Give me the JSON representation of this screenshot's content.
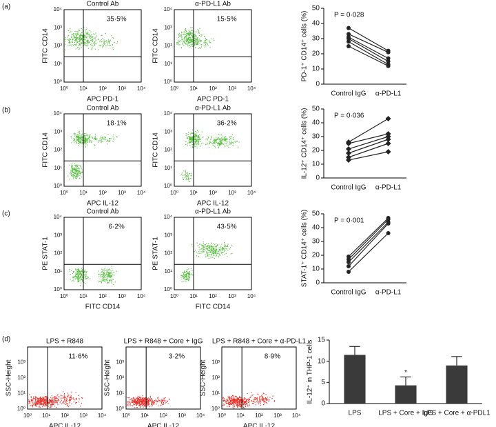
{
  "panel_labels": [
    "(a)",
    "(b)",
    "(c)",
    "(d)"
  ],
  "flow_axis_ticks": [
    "10⁰",
    "10¹",
    "10²",
    "10³",
    "10⁴"
  ],
  "flow_plots": [
    {
      "title": "Control Ab",
      "x_label": "APC PD-1",
      "y_label": "FITC CD14",
      "percent": "35·5%",
      "color": "#5cbf45"
    },
    {
      "title": "α-PD-L1 Ab",
      "x_label": "APC PD-1",
      "y_label": "FITC CD14",
      "percent": "15·5%",
      "color": "#5cbf45"
    },
    {
      "title": "Control Ab",
      "x_label": "APC IL-12",
      "y_label": "FITC CD14",
      "percent": "18·1%",
      "color": "#5cbf45"
    },
    {
      "title": "α-PD-L1 Ab",
      "x_label": "APC IL-12",
      "y_label": "FITC CD14",
      "percent": "36·2%",
      "color": "#5cbf45"
    },
    {
      "title": "Control Ab",
      "x_label": "FITC CD14",
      "y_label": "PE STAT-1",
      "percent": "6·2%",
      "color": "#5cbf45"
    },
    {
      "title": "α-PD-L1 Ab",
      "x_label": "FITC CD14",
      "y_label": "PE STAT-1",
      "percent": "43·5%",
      "color": "#5cbf45"
    },
    {
      "title": "LPS + R848",
      "x_label": "APC IL-12",
      "y_label": "SSC-Height",
      "percent": "11·6%",
      "color": "#e8322a"
    },
    {
      "title": "LPS + R848 + Core + IgG",
      "x_label": "APC IL-12",
      "y_label": "SSC-Height",
      "percent": "3·2%",
      "color": "#e8322a"
    },
    {
      "title": "LPS + R848 + Core + α-PD-L1",
      "x_label": "APC IL-12",
      "y_label": "SSC-Height",
      "percent": "8·9%",
      "color": "#e8322a"
    }
  ],
  "chart_data": [
    {
      "type": "paired",
      "y_label": "PD-1⁺ CD14⁺ cells (%)",
      "annotation": "P = 0·028",
      "categories": [
        "Control IgG",
        "α-PD-L1"
      ],
      "ylim": [
        0,
        50
      ],
      "yticks": [
        0,
        10,
        20,
        30,
        40,
        50
      ],
      "color": "#222222",
      "marker": "circle",
      "series": [
        {
          "values": [
            37,
            22
          ]
        },
        {
          "values": [
            33,
            21
          ]
        },
        {
          "values": [
            31,
            17
          ]
        },
        {
          "values": [
            30,
            15
          ]
        },
        {
          "values": [
            28,
            13
          ]
        },
        {
          "values": [
            25,
            12
          ]
        }
      ]
    },
    {
      "type": "paired",
      "y_label": "IL-12⁺ CD14⁺ cells (%)",
      "annotation": "P = 0·036",
      "categories": [
        "Control IgG",
        "α-PD-L1"
      ],
      "ylim": [
        0,
        50
      ],
      "yticks": [
        0,
        10,
        20,
        30,
        40,
        50
      ],
      "color": "#222222",
      "marker": "diamond",
      "series": [
        {
          "values": [
            26,
            43
          ]
        },
        {
          "values": [
            25,
            32
          ]
        },
        {
          "values": [
            21,
            30
          ]
        },
        {
          "values": [
            18,
            28
          ]
        },
        {
          "values": [
            15,
            25
          ]
        },
        {
          "values": [
            13,
            19
          ]
        }
      ]
    },
    {
      "type": "paired",
      "y_label": "STAT-1⁺ CD14⁺ cells (%)",
      "annotation": "P = 0·001",
      "categories": [
        "Control IgG",
        "α-PD-L1"
      ],
      "ylim": [
        0,
        50
      ],
      "yticks": [
        0,
        10,
        20,
        30,
        40,
        50
      ],
      "color": "#222222",
      "marker": "circle",
      "series": [
        {
          "values": [
            19,
            47
          ]
        },
        {
          "values": [
            17,
            46
          ]
        },
        {
          "values": [
            15,
            44
          ]
        },
        {
          "values": [
            12,
            43
          ]
        },
        {
          "values": [
            8,
            36
          ]
        }
      ]
    },
    {
      "type": "bar",
      "y_label": "IL-12⁺ in THP-1 cells",
      "annotation": "*",
      "categories": [
        "LPS",
        "LPS + Core + IgG",
        "LPS + Core + α-PDL1"
      ],
      "values": [
        11.5,
        4.3,
        9
      ],
      "errors": [
        2,
        2,
        2.1
      ],
      "ylim": [
        0,
        15
      ],
      "yticks": [
        0,
        5,
        10,
        15
      ],
      "color": "#3a3a3a"
    }
  ]
}
